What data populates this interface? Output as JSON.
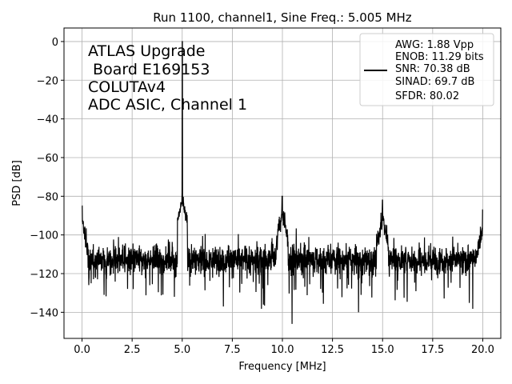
{
  "chart_data": {
    "type": "line",
    "title": "Run 1100, channel1, Sine Freq.: 5.005 MHz",
    "xlabel": "Frequency [MHz]",
    "ylabel": "PSD [dB]",
    "xlim": [
      -0.9,
      20.9
    ],
    "ylim": [
      -153.5,
      7
    ],
    "xticks": [
      0.0,
      2.5,
      5.0,
      7.5,
      10.0,
      12.5,
      15.0,
      17.5,
      20.0
    ],
    "xtick_labels": [
      "0.0",
      "2.5",
      "5.0",
      "7.5",
      "10.0",
      "12.5",
      "15.0",
      "17.5",
      "20.0"
    ],
    "yticks": [
      0,
      -20,
      -40,
      -60,
      -80,
      -100,
      -120,
      -140
    ],
    "ytick_labels": [
      "0",
      "−20",
      "−40",
      "−60",
      "−80",
      "−100",
      "−120",
      "−140"
    ],
    "grid": true,
    "annotation": [
      "ATLAS Upgrade",
      " Board E169153",
      "COLUTAv4",
      "ADC ASIC, Channel 1"
    ],
    "legend": {
      "placement": "top-right",
      "lines": [
        "AWG: 1.88 Vpp",
        "ENOB: 11.29 bits",
        "SNR: 70.38 dB",
        "SINAD: 69.7 dB",
        "SFDR: 80.02"
      ]
    },
    "series": [
      {
        "color": "#000000",
        "noise_floor": -113,
        "noise_min": -146,
        "noise_max": -95,
        "peaks": [
          {
            "x": 0.0,
            "y": -85
          },
          {
            "x": 5.005,
            "y": 0
          },
          {
            "x": 9.99,
            "y": -80
          },
          {
            "x": 14.995,
            "y": -82
          },
          {
            "x": 20.0,
            "y": -87
          }
        ],
        "dips": [
          {
            "x": 10.48,
            "y": -146
          },
          {
            "x": 13.8,
            "y": -140
          },
          {
            "x": 7.05,
            "y": -137
          },
          {
            "x": 1.1,
            "y": -131
          }
        ]
      }
    ]
  }
}
